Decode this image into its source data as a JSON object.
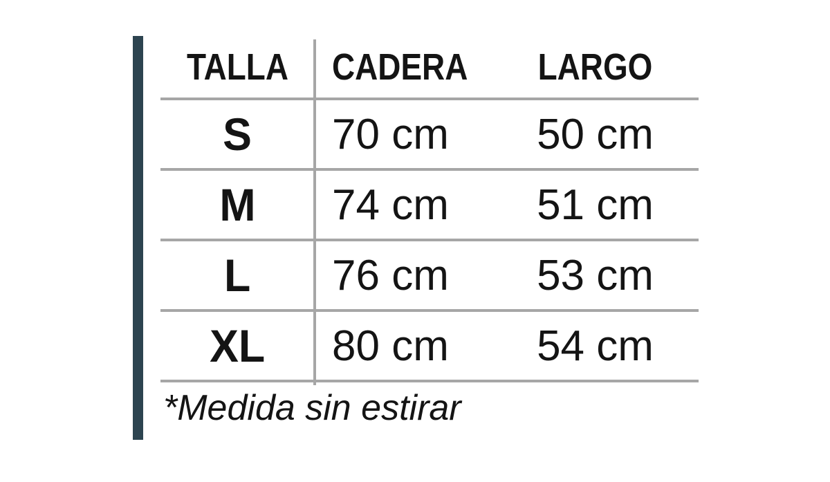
{
  "chart_data": {
    "type": "table",
    "columns": [
      "TALLA",
      "CADERA",
      "LARGO"
    ],
    "rows": [
      [
        "S",
        "70 cm",
        "50 cm"
      ],
      [
        "M",
        "74 cm",
        "51 cm"
      ],
      [
        "L",
        "76 cm",
        "53 cm"
      ],
      [
        "XL",
        "80 cm",
        "54 cm"
      ]
    ],
    "footnote": "*Medida sin estirar",
    "layout_hints": {
      "grid": "horizontal rules only, single vertical divider after first column",
      "first_column_align": "center",
      "second_column_align": "left",
      "third_column_align": "center"
    }
  },
  "colors": {
    "accent_bar": "#2d4450",
    "line": "#a6a6a6",
    "text": "#141414",
    "background": "#ffffff"
  }
}
